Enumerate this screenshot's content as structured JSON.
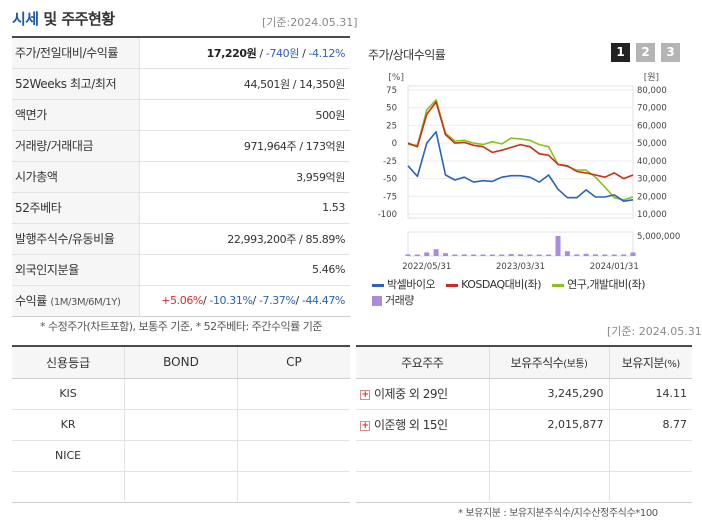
{
  "header": {
    "title_main": "시세",
    "title_rest": "및 주주현황",
    "date": "[기준:2024.05.31]"
  },
  "quote": {
    "price_row": {
      "label": "주가/전일대비/수익률",
      "price": "17,220원",
      "change": "-740원",
      "rate": "-4.12%"
    },
    "weeks52_row": {
      "label": "52Weeks 최고/최저",
      "value": "44,501원 / 14,350원"
    },
    "par_row": {
      "label": "액면가",
      "value": "500원"
    },
    "volume_row": {
      "label": "거래량/거래대금",
      "value": "971,964주 / 173억원"
    },
    "cap_row": {
      "label": "시가총액",
      "value": "3,959억원"
    },
    "beta_row": {
      "label": "52주베타",
      "value": "1.53"
    },
    "shares_row": {
      "label": "발행주식수/유동비율",
      "value": "22,993,200주 / 85.89%"
    },
    "foreign_row": {
      "label": "외국인지분율",
      "value": "5.46%"
    },
    "return_row": {
      "label": "수익률",
      "label_small": "(1M/3M/6M/1Y)",
      "r1m": "+5.06%",
      "r3m": "-10.31%",
      "r6m": "-7.37%",
      "r1y": "-44.47%",
      "sep": "/"
    }
  },
  "note_left": "* 수정주가(차트포함), 보통주 기준, * 52주베타: 주간수익률 기준",
  "chart_panel": {
    "title": "주가/상대수익률",
    "buttons": [
      "1",
      "2",
      "3"
    ],
    "colors": {
      "btn_active": "#222222",
      "btn_inactive": "#b4b4b4",
      "stock": "#2b63b8",
      "kosdaq": "#c9301a",
      "industry": "#8cc21a",
      "volume": "#a98be0"
    }
  },
  "chart_data": {
    "type": "line",
    "left_axis": {
      "unit": "[%]",
      "ticks": [
        "75",
        "50",
        "25",
        "0",
        "-25",
        "-50",
        "-75",
        "-100"
      ],
      "range": [
        -100,
        75
      ]
    },
    "right_axis": {
      "unit": "[원]",
      "ticks": [
        "80,000",
        "70,000",
        "60,000",
        "50,000",
        "40,000",
        "30,000",
        "20,000",
        "10,000"
      ],
      "range": [
        10000,
        80000
      ]
    },
    "volume_axis": {
      "tick": "5,000,000",
      "range": [
        0,
        5000000
      ]
    },
    "x_ticks": [
      "2022/05/31",
      "2023/03/31",
      "2024/01/31"
    ],
    "x_tick_index": [
      2,
      12,
      22
    ],
    "series": [
      {
        "name": "박셀바이오",
        "axis": "left",
        "values": [
          -32,
          -47,
          0,
          16,
          -45,
          -52,
          -48,
          -55,
          -53,
          -54,
          -48,
          -46,
          -46,
          -48,
          -55,
          -45,
          -65,
          -77,
          -77,
          -66,
          -76,
          -76,
          -73,
          -82,
          -80
        ]
      },
      {
        "name": "KOSDAQ대비(좌)",
        "axis": "left",
        "values": [
          0,
          -5,
          41,
          58,
          12,
          0,
          1,
          -3,
          -5,
          -13,
          -10,
          -6,
          -2,
          -5,
          -15,
          -17,
          -30,
          -32,
          -40,
          -42,
          -45,
          -48,
          -42,
          -50,
          -45
        ]
      },
      {
        "name": "연구,개발대비(좌)",
        "axis": "left",
        "values": [
          -2,
          -3,
          47,
          61,
          14,
          3,
          4,
          0,
          -2,
          2,
          -1,
          7,
          6,
          4,
          -2,
          -5,
          -30,
          -33,
          -38,
          -38,
          -48,
          -62,
          -77,
          -80,
          -76
        ]
      }
    ],
    "volume": {
      "name": "거래량",
      "values": [
        400000,
        100000,
        900000,
        1700000,
        700000,
        300000,
        400000,
        300000,
        200000,
        250000,
        150000,
        500000,
        400000,
        350000,
        300000,
        200000,
        5000000,
        1200000,
        400000,
        550000,
        400000,
        250000,
        200000,
        300000,
        900000
      ]
    },
    "grid": true
  },
  "date_right": "[기준: 2024.05.31]",
  "credit": {
    "headers": [
      "신용등급",
      "BOND",
      "CP"
    ],
    "rows": [
      {
        "agency": "KIS",
        "bond": "",
        "cp": ""
      },
      {
        "agency": "KR",
        "bond": "",
        "cp": ""
      },
      {
        "agency": "NICE",
        "bond": "",
        "cp": ""
      },
      {
        "agency": "",
        "bond": "",
        "cp": ""
      }
    ]
  },
  "holders": {
    "headers": {
      "name": "주요주주",
      "shares": "보유주식수",
      "shares_small": "(보통)",
      "ratio": "보유지분",
      "ratio_small": "(%)"
    },
    "rows": [
      {
        "name": "이제중 외 29인",
        "shares": "3,245,290",
        "ratio": "14.11"
      },
      {
        "name": "이준행 외 15인",
        "shares": "2,015,877",
        "ratio": "8.77"
      },
      {
        "name": "",
        "shares": "",
        "ratio": ""
      },
      {
        "name": "",
        "shares": "",
        "ratio": ""
      }
    ]
  },
  "note_right": "* 보유지분 : 보유지분주식수/지수산정주식수*100"
}
